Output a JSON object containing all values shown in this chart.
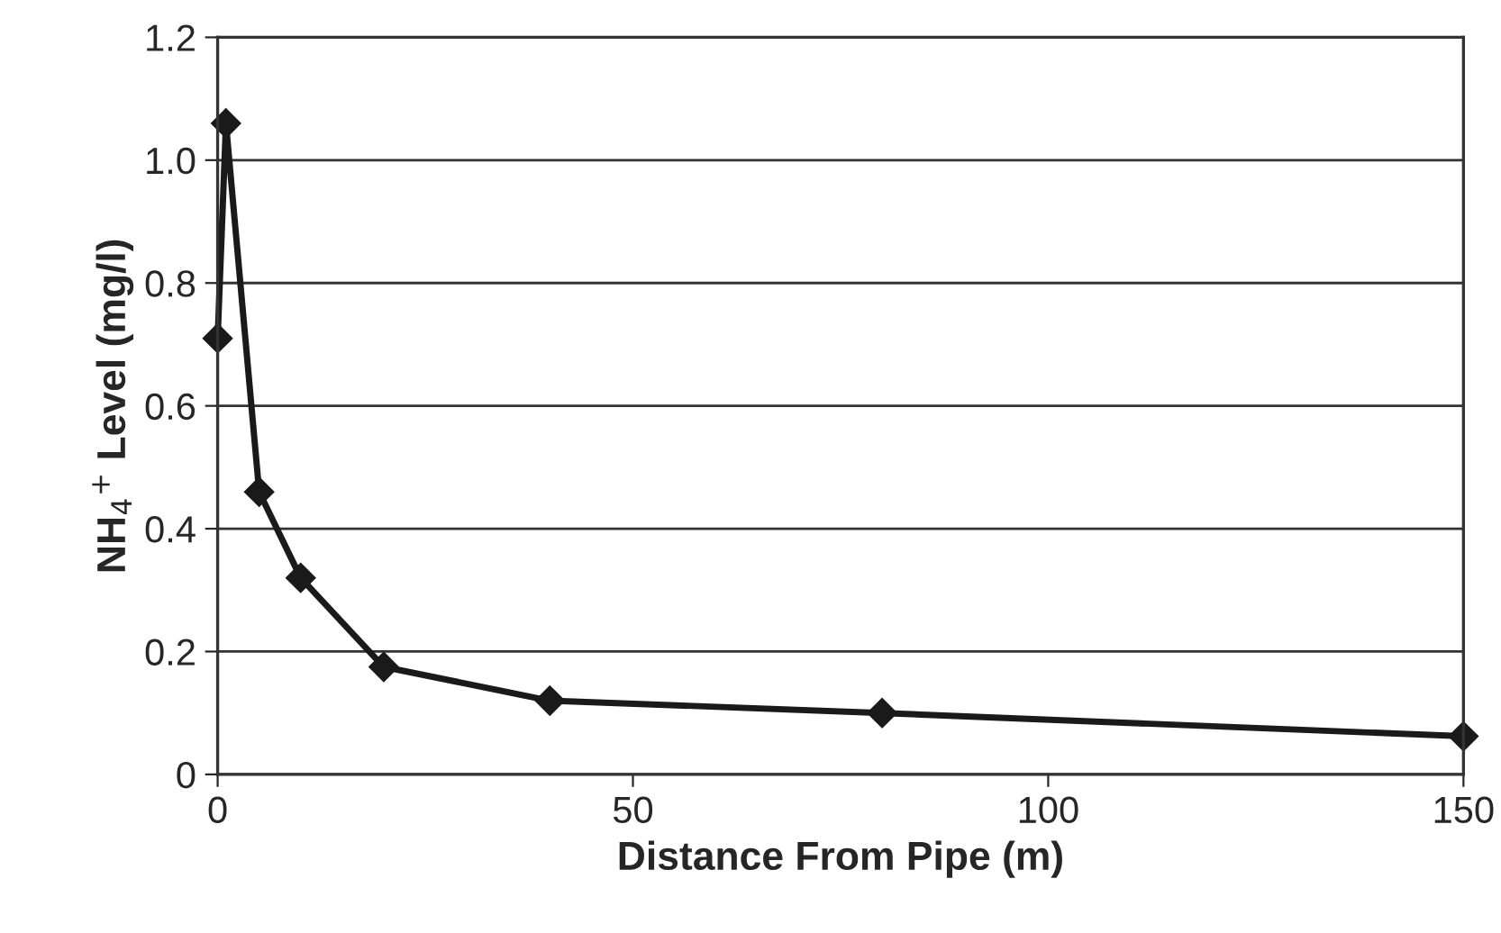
{
  "chart_data": {
    "type": "line",
    "xlabel": "Distance From Pipe (m)",
    "ylabel": "NH$_{4}$$^{+}$ Level (mg/l)",
    "x": [
      0,
      1,
      5,
      10,
      20,
      40,
      80,
      150
    ],
    "series": [
      {
        "color": "#1a1a1a",
        "values": [
          0.71,
          1.06,
          0.46,
          0.32,
          0.175,
          0.12,
          0.1,
          0.062
        ]
      }
    ],
    "xlim": [
      0,
      150
    ],
    "xticks": [
      0,
      50,
      100,
      150
    ],
    "ylim": [
      0,
      1.2
    ],
    "yticks": [
      0,
      0.2,
      0.4,
      0.6,
      0.8,
      {
        "value": 1.0,
        "label": "1.0"
      },
      {
        "value": 1.2,
        "label": "1.2"
      }
    ],
    "grid": "y",
    "marker": "diamond",
    "line_style": "solid"
  }
}
